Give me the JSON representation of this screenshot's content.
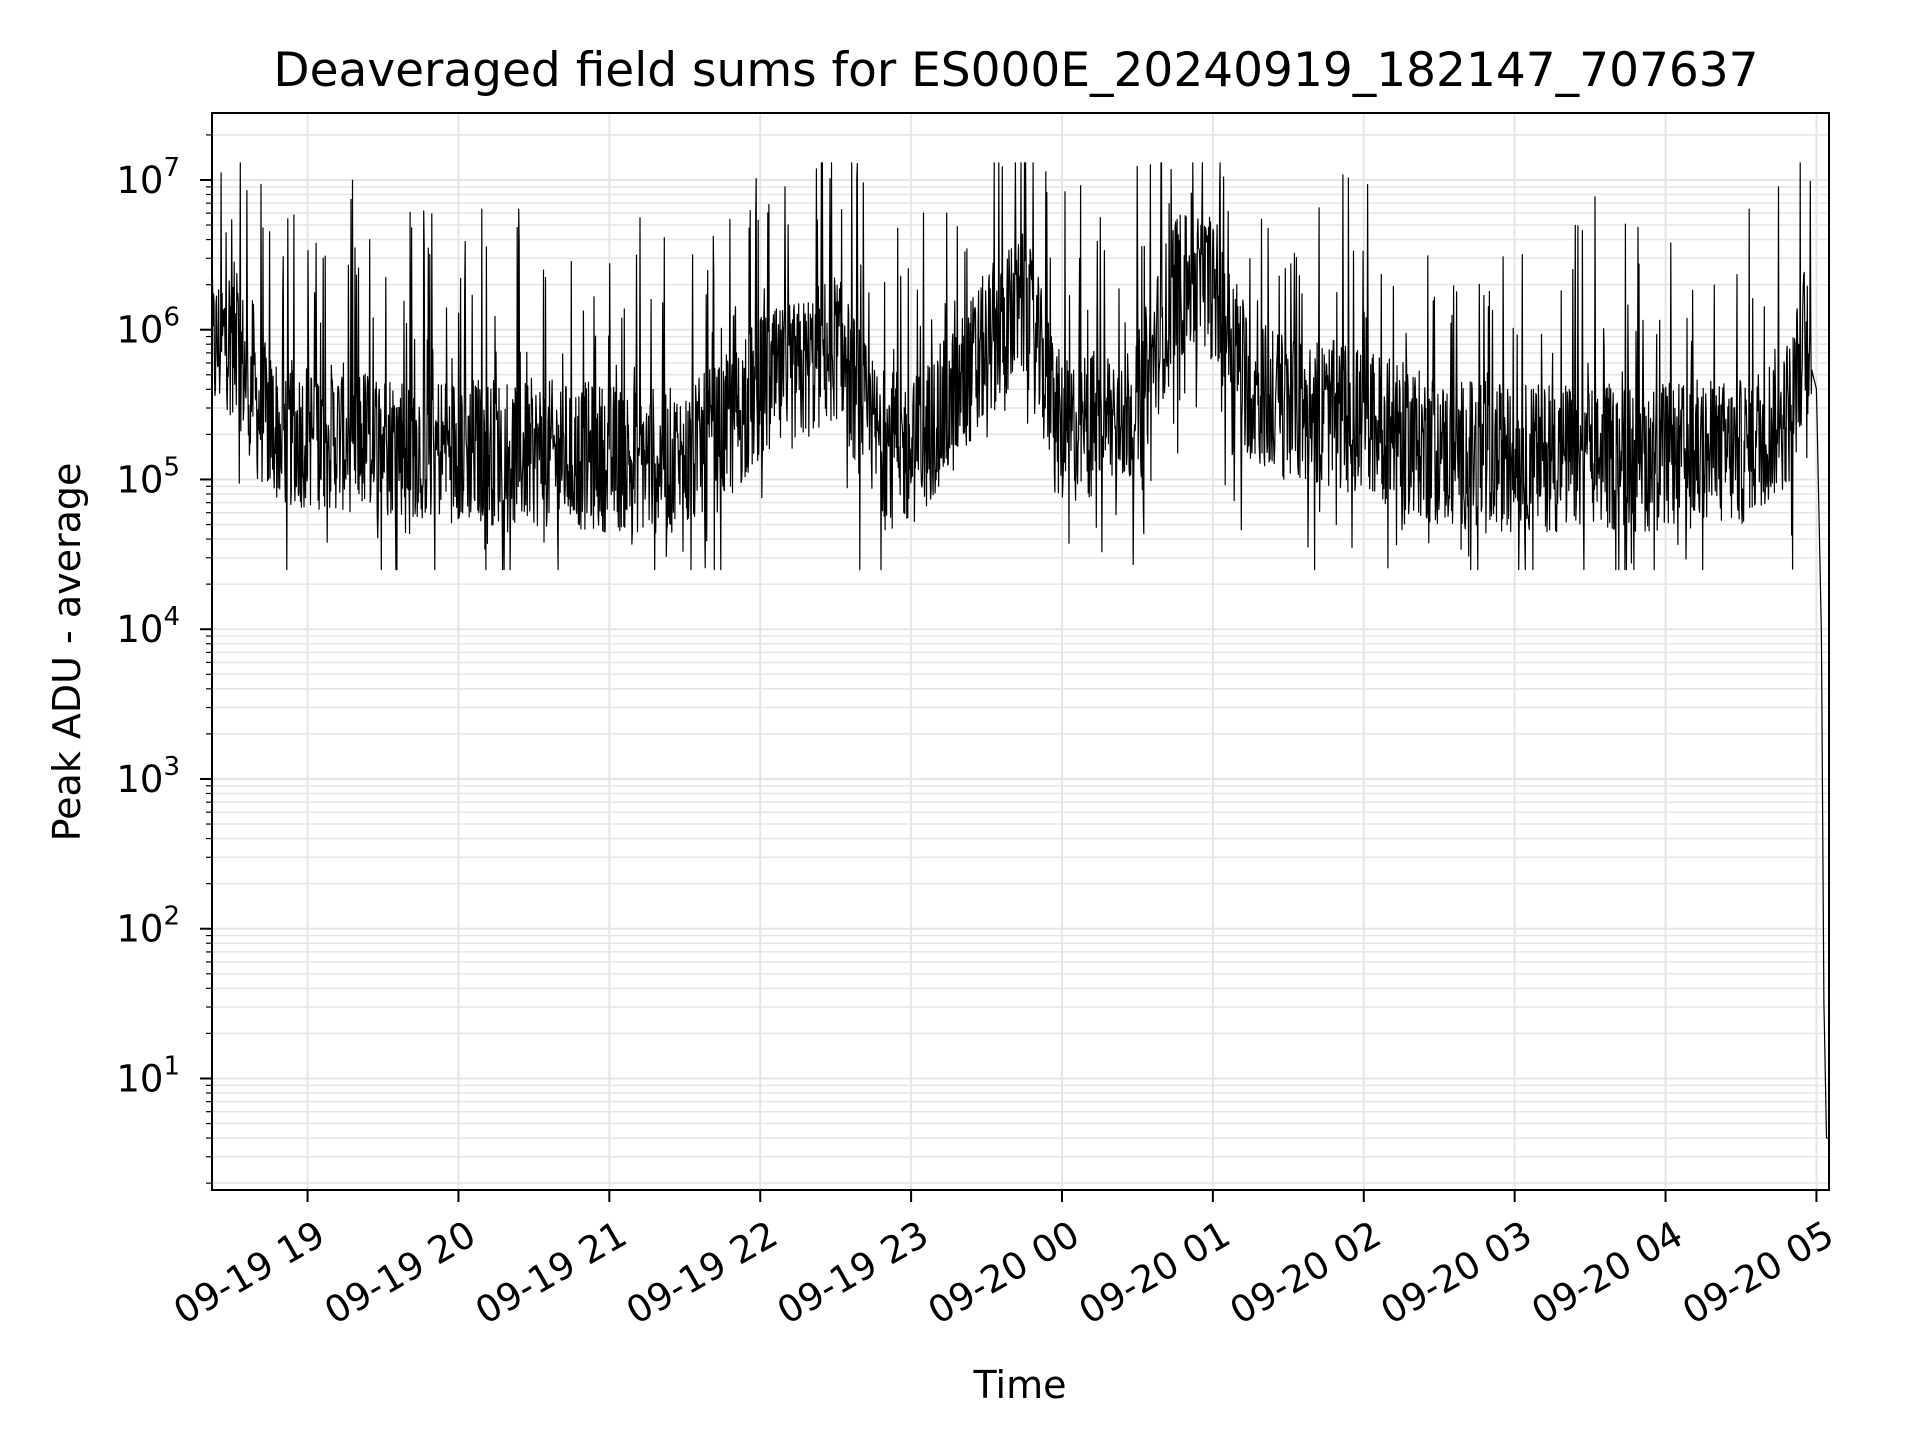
{
  "chart_data": {
    "type": "line",
    "title": "Deaveraged field sums for ES000E_20240919_182147_707637",
    "xlabel": "Time",
    "ylabel": "Peak ADU - average",
    "y_scale": "log",
    "ylim": [
      1.8,
      28000000
    ],
    "xlim": [
      "2024-09-19 18:22",
      "2024-09-20 05:05"
    ],
    "x_ticks": [
      "2024-09-19 19:00",
      "2024-09-19 20:00",
      "2024-09-19 21:00",
      "2024-09-19 22:00",
      "2024-09-19 23:00",
      "2024-09-20 00:00",
      "2024-09-20 01:00",
      "2024-09-20 02:00",
      "2024-09-20 03:00",
      "2024-09-20 04:00",
      "2024-09-20 05:00"
    ],
    "x_tick_labels": [
      "09-19 19",
      "09-19 20",
      "09-19 21",
      "09-19 22",
      "09-19 23",
      "09-20 00",
      "09-20 01",
      "09-20 02",
      "09-20 03",
      "09-20 04",
      "09-20 05"
    ],
    "y_ticks": [
      {
        "value": 10,
        "base": "10",
        "exp": "1"
      },
      {
        "value": 100,
        "base": "10",
        "exp": "2"
      },
      {
        "value": 1000,
        "base": "10",
        "exp": "3"
      },
      {
        "value": 10000,
        "base": "10",
        "exp": "4"
      },
      {
        "value": 100000,
        "base": "10",
        "exp": "5"
      },
      {
        "value": 1000000,
        "base": "10",
        "exp": "6"
      },
      {
        "value": 10000000,
        "base": "10",
        "exp": "7"
      }
    ],
    "grid": true,
    "line_color": "#000000",
    "grid_color": "#e5e5e5",
    "series": [
      {
        "x": [
          "2024-09-19 18:22",
          "2024-09-19 18:30",
          "2024-09-19 18:40",
          "2024-09-19 18:50",
          "2024-09-19 19:00",
          "2024-09-19 19:30",
          "2024-09-19 20:00",
          "2024-09-19 20:30",
          "2024-09-19 21:00",
          "2024-09-19 21:30",
          "2024-09-19 21:45",
          "2024-09-19 22:00",
          "2024-09-19 22:15",
          "2024-09-19 22:30",
          "2024-09-19 22:45",
          "2024-09-19 23:00",
          "2024-09-19 23:15",
          "2024-09-19 23:30",
          "2024-09-19 23:45",
          "2024-09-20 00:00",
          "2024-09-20 00:15",
          "2024-09-20 00:30",
          "2024-09-20 00:45",
          "2024-09-20 01:00",
          "2024-09-20 01:15",
          "2024-09-20 01:30",
          "2024-09-20 02:00",
          "2024-09-20 02:30",
          "2024-09-20 03:00",
          "2024-09-20 03:30",
          "2024-09-20 04:00",
          "2024-09-20 04:30",
          "2024-09-20 04:50",
          "2024-09-20 04:55",
          "2024-09-20 05:00",
          "2024-09-20 05:02",
          "2024-09-20 05:03",
          "2024-09-20 05:04",
          "2024-09-20 05:05"
        ],
        "values": [
          700000,
          1000000,
          300000,
          200000,
          200000,
          180000,
          160000,
          150000,
          140000,
          130000,
          200000,
          400000,
          500000,
          800000,
          200000,
          150000,
          300000,
          800000,
          1500000,
          200000,
          250000,
          300000,
          2000000,
          2000000,
          400000,
          300000,
          250000,
          150000,
          140000,
          140000,
          140000,
          150000,
          300000,
          900000,
          400000,
          9000,
          30,
          4,
          4
        ],
        "noise_range": [
          25000,
          13000000
        ]
      }
    ]
  }
}
